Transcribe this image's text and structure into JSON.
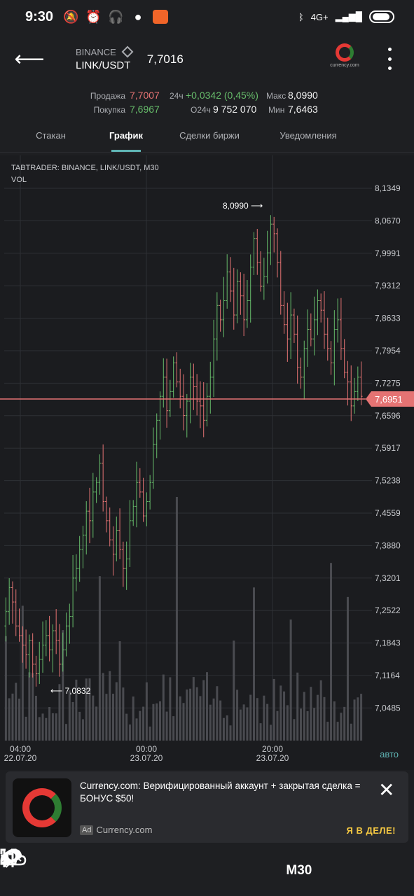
{
  "status": {
    "time": "9:30",
    "network": "4G+"
  },
  "header": {
    "exchange": "BINANCE",
    "pair": "LINK/USDT",
    "price": "7,7016",
    "logo_text": "currency.com"
  },
  "stats": {
    "sell_label": "Продажа",
    "sell_value": "7,7007",
    "buy_label": "Покупка",
    "buy_value": "7,6967",
    "change_label": "24ч",
    "change_value": "+0,0342 (0,45%)",
    "volume_label": "O24ч",
    "volume_value": "9 752 070",
    "max_label": "Макс",
    "max_value": "8,0990",
    "min_label": "Мин",
    "min_value": "7,6463"
  },
  "tabs": [
    {
      "label": "Стакан"
    },
    {
      "label": "График"
    },
    {
      "label": "Сделки биржи"
    },
    {
      "label": "Уведомления"
    }
  ],
  "chart": {
    "title_line1": "TABTRADER: BINANCE, LINK/USDT, M30",
    "title_line2": "VOL",
    "current_price": "7,6951",
    "high_marker": "8,0990 ⟶",
    "low_marker": "⟵ 7,0832",
    "auto_label": "авто",
    "colors": {
      "up": "#66bb6a",
      "down": "#e57373",
      "price_line": "#e57373",
      "volume": "#4a4b50"
    }
  },
  "chart_data": {
    "type": "candlestick",
    "title": "TABTRADER: BINANCE, LINK/USDT, M30",
    "y_ticks": [
      "8,1349",
      "8,0670",
      "7,9991",
      "7,9312",
      "7,8633",
      "7,7954",
      "7,7275",
      "7,6596",
      "7,5917",
      "7,5238",
      "7,4559",
      "7,3880",
      "7,3201",
      "7,2522",
      "7,1843",
      "7,1164",
      "7,0485"
    ],
    "ylim": [
      7.02,
      8.16
    ],
    "x_ticks": [
      {
        "time": "04:00",
        "date": "22.07.20"
      },
      {
        "time": "00:00",
        "date": "23.07.20"
      },
      {
        "time": "20:00",
        "date": "23.07.20"
      }
    ],
    "close": [
      7.25,
      7.3,
      7.27,
      7.22,
      7.2,
      7.18,
      7.16,
      7.19,
      7.14,
      7.12,
      7.15,
      7.18,
      7.2,
      7.17,
      7.21,
      7.19,
      7.14,
      7.17,
      7.22,
      7.24,
      7.32,
      7.34,
      7.38,
      7.41,
      7.46,
      7.44,
      7.5,
      7.52,
      7.56,
      7.48,
      7.44,
      7.4,
      7.37,
      7.42,
      7.38,
      7.34,
      7.36,
      7.44,
      7.47,
      7.52,
      7.5,
      7.45,
      7.48,
      7.52,
      7.6,
      7.65,
      7.7,
      7.74,
      7.67,
      7.71,
      7.77,
      7.73,
      7.7,
      7.66,
      7.69,
      7.74,
      7.72,
      7.69,
      7.68,
      7.65,
      7.7,
      7.74,
      7.82,
      7.89,
      7.86,
      7.9,
      7.96,
      7.92,
      7.87,
      7.94,
      7.91,
      7.86,
      7.9,
      7.97,
      8.03,
      7.98,
      7.93,
      7.95,
      8.0,
      8.06,
      8.04,
      7.98,
      7.89,
      7.85,
      7.82,
      7.87,
      7.83,
      7.76,
      7.74,
      7.8,
      7.84,
      7.82,
      7.86,
      7.9,
      7.88,
      7.83,
      7.8,
      7.77,
      7.84,
      7.86,
      7.8,
      7.75,
      7.73,
      7.68,
      7.71,
      7.74,
      7.7
    ],
    "volume_note": "volume bars at bottom (relative, unlabeled)"
  },
  "ad": {
    "text": "Currency.com: Верифицированный аккаунт + закрытая сделка = БОНУС $50!",
    "badge": "Ad",
    "source": "Currency.com",
    "cta": "Я В ДЕЛЕ!"
  },
  "toolbar": {
    "timeframe": "M30"
  }
}
